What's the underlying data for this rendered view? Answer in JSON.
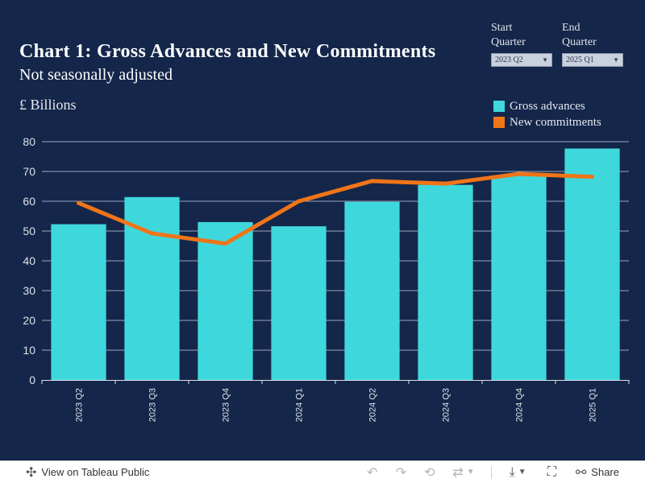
{
  "title": "Chart 1: Gross Advances and New Commitments",
  "subtitle": "Not seasonally adjusted",
  "unit_label": "£ Billions",
  "filters": {
    "start_label": "Start\nQuarter",
    "start_value": "2023 Q2",
    "end_label": "End\nQuarter",
    "end_value": "2025 Q1"
  },
  "legend": [
    {
      "label": "Gross advances",
      "color": "#3ed8dc"
    },
    {
      "label": "New commitments",
      "color": "#f07418"
    }
  ],
  "chart_data": {
    "type": "bar",
    "categories": [
      "2023 Q2",
      "2023 Q3",
      "2023 Q4",
      "2024 Q1",
      "2024 Q2",
      "2024 Q3",
      "2024 Q4",
      "2025 Q1"
    ],
    "series": [
      {
        "name": "Gross advances",
        "type": "bar",
        "color": "#3ed8dc",
        "values": [
          52.3,
          61.4,
          53.0,
          51.6,
          59.8,
          65.5,
          68.5,
          77.7
        ]
      },
      {
        "name": "New commitments",
        "type": "line",
        "color": "#f07418",
        "values": [
          59.4,
          49.2,
          45.8,
          60.0,
          66.8,
          65.9,
          69.2,
          68.2
        ]
      }
    ],
    "ylim": [
      0,
      80
    ],
    "yticks": [
      0,
      10,
      20,
      30,
      40,
      50,
      60,
      70,
      80
    ],
    "grid": true,
    "legend_position": "top-right"
  },
  "toolbar": {
    "view_label": "View on Tableau Public",
    "share_label": "Share"
  }
}
